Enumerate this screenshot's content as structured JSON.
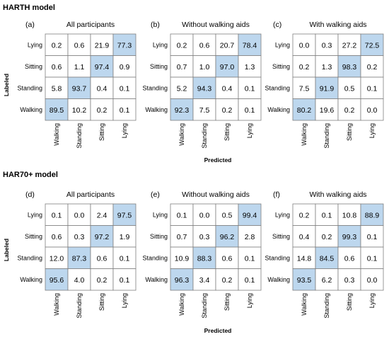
{
  "sections": [
    {
      "title": "HARTH model",
      "ylabel": "Labeled",
      "xlabel": "Predicted"
    },
    {
      "title": "HAR70+ model",
      "ylabel": "Labeled",
      "xlabel": "Predicted"
    }
  ],
  "colors": {
    "highlight": "#bdd7ee",
    "grid": "#7f7f7f",
    "text": "#000000"
  },
  "chart_data": [
    {
      "type": "heatmap",
      "section": "HARTH model",
      "panel": "(a)",
      "title": "All participants",
      "rows": [
        "Lying",
        "Sitting",
        "Standing",
        "Walking"
      ],
      "columns": [
        "Walking",
        "Standing",
        "Sitting",
        "Lying"
      ],
      "values": [
        [
          0.2,
          0.6,
          21.9,
          77.3
        ],
        [
          0.6,
          1.1,
          97.4,
          0.9
        ],
        [
          5.8,
          93.7,
          0.4,
          0.1
        ],
        [
          89.5,
          10.2,
          0.2,
          0.1
        ]
      ],
      "xlabel": "Predicted",
      "ylabel": "Labeled"
    },
    {
      "type": "heatmap",
      "section": "HARTH model",
      "panel": "(b)",
      "title": "Without walking aids",
      "rows": [
        "Lying",
        "Sitting",
        "Standing",
        "Walking"
      ],
      "columns": [
        "Walking",
        "Standing",
        "Sitting",
        "Lying"
      ],
      "values": [
        [
          0.2,
          0.6,
          20.7,
          78.4
        ],
        [
          0.7,
          1.0,
          97.0,
          1.3
        ],
        [
          5.2,
          94.3,
          0.4,
          0.1
        ],
        [
          92.3,
          7.5,
          0.2,
          0.1
        ]
      ],
      "xlabel": "Predicted",
      "ylabel": "Labeled"
    },
    {
      "type": "heatmap",
      "section": "HARTH model",
      "panel": "(c)",
      "title": "With walking aids",
      "rows": [
        "Lying",
        "Sitting",
        "Standing",
        "Walking"
      ],
      "columns": [
        "Walking",
        "Standing",
        "Sitting",
        "Lying"
      ],
      "values": [
        [
          0.0,
          0.3,
          27.2,
          72.5
        ],
        [
          0.2,
          1.3,
          98.3,
          0.2
        ],
        [
          7.5,
          91.9,
          0.5,
          0.1
        ],
        [
          80.2,
          19.6,
          0.2,
          0.0
        ]
      ],
      "xlabel": "Predicted",
      "ylabel": "Labeled"
    },
    {
      "type": "heatmap",
      "section": "HAR70+ model",
      "panel": "(d)",
      "title": "All participants",
      "rows": [
        "Lying",
        "Sitting",
        "Standing",
        "Walking"
      ],
      "columns": [
        "Walking",
        "Standing",
        "Sitting",
        "Lying"
      ],
      "values": [
        [
          0.1,
          0.0,
          2.4,
          97.5
        ],
        [
          0.6,
          0.3,
          97.2,
          1.9
        ],
        [
          12.0,
          87.3,
          0.6,
          0.1
        ],
        [
          95.6,
          4.0,
          0.2,
          0.1
        ]
      ],
      "xlabel": "Predicted",
      "ylabel": "Labeled"
    },
    {
      "type": "heatmap",
      "section": "HAR70+ model",
      "panel": "(e)",
      "title": "Without walking aids",
      "rows": [
        "Lying",
        "Sitting",
        "Standing",
        "Walking"
      ],
      "columns": [
        "Walking",
        "Standing",
        "Sitting",
        "Lying"
      ],
      "values": [
        [
          0.1,
          0.0,
          0.5,
          99.4
        ],
        [
          0.7,
          0.3,
          96.2,
          2.8
        ],
        [
          10.9,
          88.3,
          0.6,
          0.1
        ],
        [
          96.3,
          3.4,
          0.2,
          0.1
        ]
      ],
      "xlabel": "Predicted",
      "ylabel": "Labeled"
    },
    {
      "type": "heatmap",
      "section": "HAR70+ model",
      "panel": "(f)",
      "title": "With walking aids",
      "rows": [
        "Lying",
        "Sitting",
        "Standing",
        "Walking"
      ],
      "columns": [
        "Walking",
        "Standing",
        "Sitting",
        "Lying"
      ],
      "values": [
        [
          0.2,
          0.1,
          10.8,
          88.9
        ],
        [
          0.4,
          0.2,
          99.3,
          0.1
        ],
        [
          14.8,
          84.5,
          0.6,
          0.1
        ],
        [
          93.5,
          6.2,
          0.3,
          0.0
        ]
      ],
      "xlabel": "Predicted",
      "ylabel": "Labeled"
    }
  ]
}
